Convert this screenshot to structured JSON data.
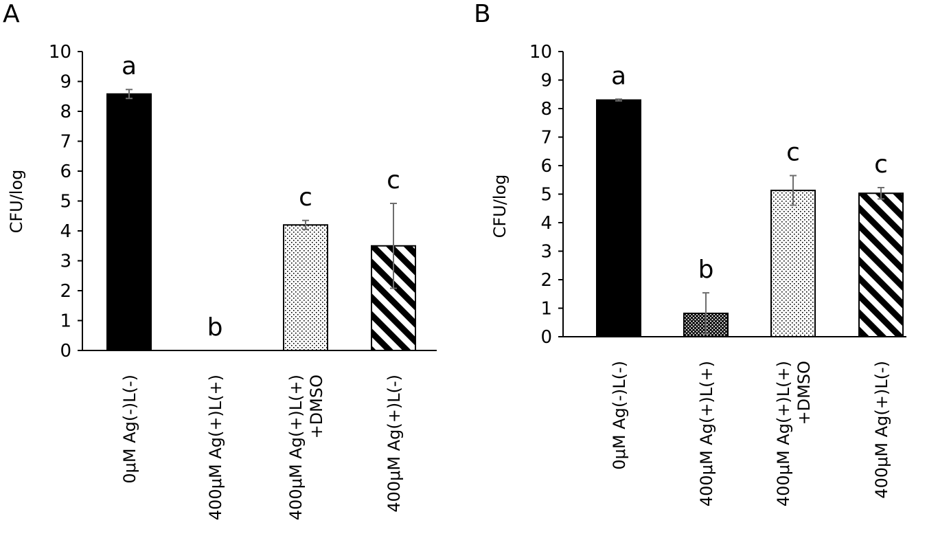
{
  "chart_data": [
    {
      "type": "bar",
      "panel_label": "A",
      "ylabel": "CFU/log",
      "ylim": [
        0,
        10
      ],
      "yticks": [
        "0",
        "1",
        "2",
        "3",
        "4",
        "5",
        "6",
        "7",
        "8",
        "9",
        "10"
      ],
      "grid": false,
      "categories": [
        [
          "0μM Ag(-)L(-)"
        ],
        [
          "400μM Ag(+)L(+)"
        ],
        [
          "400μM Ag(+)L(+)",
          "+DMSO"
        ],
        [
          "400μM Ag(+)L(-)"
        ]
      ],
      "values": [
        8.58,
        0,
        4.2,
        3.5
      ],
      "errors": [
        0.15,
        0,
        0.15,
        1.42
      ],
      "significance": [
        "a",
        "b",
        "c",
        "c"
      ],
      "patterns": [
        "solid",
        "none",
        "dots",
        "diagonal"
      ]
    },
    {
      "type": "bar",
      "panel_label": "B",
      "ylabel": "CFU/log",
      "ylim": [
        0,
        10
      ],
      "yticks": [
        "0",
        "1",
        "2",
        "3",
        "4",
        "5",
        "6",
        "7",
        "8",
        "9",
        "10"
      ],
      "grid": false,
      "categories": [
        [
          "0μM Ag(-)L(-)"
        ],
        [
          "400μM Ag(+)L(+)"
        ],
        [
          "400μM Ag(+)L(+)",
          "+DMSO"
        ],
        [
          "400μM Ag(+)L(-)"
        ]
      ],
      "values": [
        8.3,
        0.82,
        5.13,
        5.03
      ],
      "errors": [
        0.03,
        0.72,
        0.52,
        0.2
      ],
      "significance": [
        "a",
        "b",
        "c",
        "c"
      ],
      "patterns": [
        "solid",
        "crosshatch",
        "dots",
        "diagonal"
      ]
    }
  ]
}
